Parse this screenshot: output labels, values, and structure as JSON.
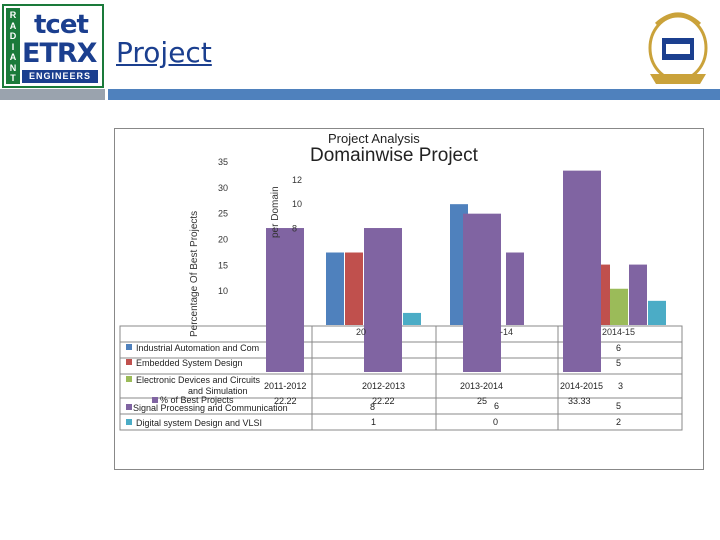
{
  "logo": {
    "side": "RADIANT",
    "line1": "tcet",
    "line2": "ETRX",
    "line3": "ENGINEERS"
  },
  "slide_title": "Project",
  "chart_data": [
    {
      "type": "bar",
      "title": "Project Analysis",
      "ylabel": "Percentage Of Best Projects",
      "ylim": [
        5,
        35
      ],
      "yticks": [
        10,
        15,
        20,
        25,
        30,
        35
      ],
      "categories": [
        "2011-2012",
        "2012-2013",
        "2013-2014",
        "2014-2015"
      ],
      "series": [
        {
          "name": "% of Best Projects",
          "values": [
            22.22,
            22.22,
            25,
            33.33
          ]
        }
      ]
    },
    {
      "type": "bar",
      "title": "Domainwise Project",
      "ylabel": "per Domain",
      "ylim": [
        0,
        12
      ],
      "yticks": [
        8,
        10,
        12
      ],
      "categories": [
        "2011-12",
        "2012-13",
        "2013-14",
        "2014-15"
      ],
      "series": [
        {
          "name": "Industrial Automation and Communication",
          "values": [
            null,
            null,
            null,
            6
          ]
        },
        {
          "name": "Embedded System Design",
          "values": [
            null,
            null,
            null,
            5
          ]
        },
        {
          "name": "Electronic Devices and Circuits Modeling and Simulation",
          "values": [
            null,
            null,
            null,
            3
          ]
        },
        {
          "name": "Signal Processing and Communication",
          "values": [
            null,
            8,
            6,
            5
          ]
        },
        {
          "name": "Digital system Design and VLSI",
          "values": [
            null,
            1,
            0,
            2
          ]
        }
      ]
    }
  ],
  "visible_labels": {
    "front_x_categories": [
      "2011-2012",
      "2012-2013",
      "2013-2014",
      "2014-2015"
    ],
    "front_values": [
      "22.22",
      "22.22",
      "25",
      "33.33"
    ],
    "back_visible_cats": [
      "20",
      "-14",
      "2014-15"
    ],
    "legend_front": "% of Best Projects",
    "legend_back": [
      "Industrial Automation and Com",
      "Embedded System Design",
      "Electronic Devices and Circuits",
      "and Simulation",
      "Signal Processing and Communication",
      "Digital system Design and VLSI"
    ]
  },
  "colors": {
    "blue": "#4f81bd",
    "red": "#c0504d",
    "green": "#9bbb59",
    "purple": "#8064a2",
    "cyan": "#4bacc6",
    "accent": "#1b3f8f"
  }
}
